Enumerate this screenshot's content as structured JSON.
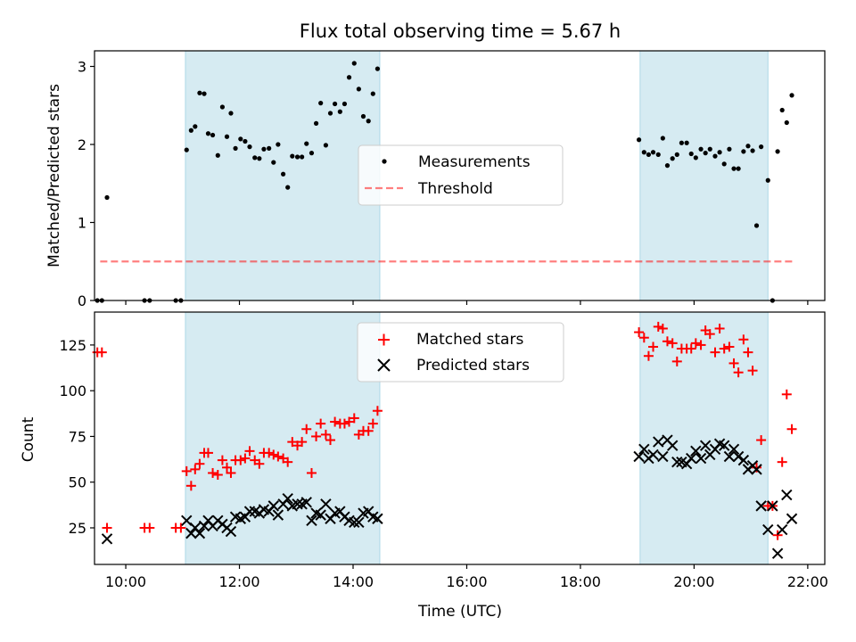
{
  "figure": {
    "title": "Flux total observing time = 5.67 h",
    "xlabel": "Time (UTC)"
  },
  "colors": {
    "shade": "#add8e6",
    "measurement": "#000000",
    "threshold": "#ff0000",
    "matched": "#ff0000",
    "predicted": "#000000"
  },
  "chart_data": [
    {
      "type": "scatter",
      "name": "ratio",
      "ylabel": "Matched/Predicted stars",
      "xlim": [
        9.45,
        22.3
      ],
      "ylim": [
        0,
        3.2
      ],
      "yticks": [
        0,
        1,
        2,
        3
      ],
      "xticks": [
        10,
        12,
        14,
        16,
        18,
        20,
        22
      ],
      "xtick_labels": [
        "10:00",
        "12:00",
        "14:00",
        "16:00",
        "18:00",
        "20:00",
        "22:00"
      ],
      "shaded_intervals": [
        [
          11.05,
          14.47
        ],
        [
          19.05,
          21.3
        ]
      ],
      "legend": {
        "position": "center",
        "entries": [
          "Measurements",
          "Threshold"
        ]
      },
      "threshold": {
        "name": "Threshold",
        "y": 0.5,
        "x": [
          9.55,
          21.75
        ]
      },
      "series": [
        {
          "name": "Measurements",
          "points": [
            [
              9.5,
              0
            ],
            [
              9.58,
              0
            ],
            [
              9.67,
              1.32
            ],
            [
              10.33,
              0
            ],
            [
              10.42,
              0
            ],
            [
              10.88,
              0
            ],
            [
              10.97,
              0
            ],
            [
              11.07,
              1.93
            ],
            [
              11.15,
              2.18
            ],
            [
              11.22,
              2.23
            ],
            [
              11.3,
              2.66
            ],
            [
              11.38,
              2.65
            ],
            [
              11.45,
              2.14
            ],
            [
              11.53,
              2.12
            ],
            [
              11.62,
              1.86
            ],
            [
              11.7,
              2.48
            ],
            [
              11.78,
              2.1
            ],
            [
              11.85,
              2.4
            ],
            [
              11.93,
              1.95
            ],
            [
              12.02,
              2.07
            ],
            [
              12.1,
              2.04
            ],
            [
              12.18,
              1.97
            ],
            [
              12.27,
              1.83
            ],
            [
              12.35,
              1.82
            ],
            [
              12.43,
              1.94
            ],
            [
              12.52,
              1.95
            ],
            [
              12.6,
              1.77
            ],
            [
              12.68,
              2.0
            ],
            [
              12.77,
              1.62
            ],
            [
              12.85,
              1.45
            ],
            [
              12.93,
              1.85
            ],
            [
              13.02,
              1.84
            ],
            [
              13.1,
              1.84
            ],
            [
              13.18,
              2.01
            ],
            [
              13.27,
              1.89
            ],
            [
              13.35,
              2.27
            ],
            [
              13.43,
              2.53
            ],
            [
              13.52,
              1.99
            ],
            [
              13.6,
              2.4
            ],
            [
              13.68,
              2.52
            ],
            [
              13.77,
              2.42
            ],
            [
              13.85,
              2.52
            ],
            [
              13.93,
              2.86
            ],
            [
              14.02,
              3.04
            ],
            [
              14.1,
              2.71
            ],
            [
              14.18,
              2.36
            ],
            [
              14.27,
              2.3
            ],
            [
              14.35,
              2.65
            ],
            [
              14.43,
              2.97
            ],
            [
              19.03,
              2.06
            ],
            [
              19.12,
              1.9
            ],
            [
              19.2,
              1.87
            ],
            [
              19.28,
              1.9
            ],
            [
              19.37,
              1.87
            ],
            [
              19.45,
              2.08
            ],
            [
              19.53,
              1.73
            ],
            [
              19.62,
              1.82
            ],
            [
              19.7,
              1.87
            ],
            [
              19.78,
              2.02
            ],
            [
              19.87,
              2.02
            ],
            [
              19.95,
              1.88
            ],
            [
              20.03,
              1.83
            ],
            [
              20.12,
              1.94
            ],
            [
              20.2,
              1.89
            ],
            [
              20.28,
              1.94
            ],
            [
              20.37,
              1.85
            ],
            [
              20.45,
              1.9
            ],
            [
              20.53,
              1.75
            ],
            [
              20.62,
              1.94
            ],
            [
              20.7,
              1.69
            ],
            [
              20.78,
              1.69
            ],
            [
              20.87,
              1.91
            ],
            [
              20.95,
              1.98
            ],
            [
              21.03,
              1.92
            ],
            [
              21.1,
              0.96
            ],
            [
              21.18,
              1.97
            ],
            [
              21.3,
              1.54
            ],
            [
              21.38,
              0
            ],
            [
              21.47,
              1.91
            ],
            [
              21.55,
              2.44
            ],
            [
              21.63,
              2.28
            ],
            [
              21.72,
              2.63
            ]
          ]
        }
      ]
    },
    {
      "type": "scatter",
      "name": "counts",
      "ylabel": "Count",
      "xlim": [
        9.45,
        22.3
      ],
      "ylim": [
        5,
        143
      ],
      "yticks": [
        25,
        50,
        75,
        100,
        125
      ],
      "xticks": [
        10,
        12,
        14,
        16,
        18,
        20,
        22
      ],
      "xtick_labels": [
        "10:00",
        "12:00",
        "14:00",
        "16:00",
        "18:00",
        "20:00",
        "22:00"
      ],
      "shaded_intervals": [
        [
          11.05,
          14.47
        ],
        [
          19.05,
          21.3
        ]
      ],
      "legend": {
        "position": "upper center",
        "entries": [
          "Matched stars",
          "Predicted stars"
        ]
      },
      "series": [
        {
          "name": "Matched stars",
          "marker": "plus",
          "points": [
            [
              9.5,
              121
            ],
            [
              9.58,
              121
            ],
            [
              9.67,
              25
            ],
            [
              10.33,
              25
            ],
            [
              10.42,
              25
            ],
            [
              10.88,
              25
            ],
            [
              10.97,
              25
            ],
            [
              11.07,
              56
            ],
            [
              11.15,
              48
            ],
            [
              11.22,
              57
            ],
            [
              11.3,
              60
            ],
            [
              11.38,
              66
            ],
            [
              11.45,
              66
            ],
            [
              11.53,
              55
            ],
            [
              11.62,
              54
            ],
            [
              11.7,
              62
            ],
            [
              11.78,
              58
            ],
            [
              11.85,
              55
            ],
            [
              11.93,
              62
            ],
            [
              12.02,
              62
            ],
            [
              12.1,
              63
            ],
            [
              12.18,
              67
            ],
            [
              12.27,
              62
            ],
            [
              12.35,
              60
            ],
            [
              12.43,
              66
            ],
            [
              12.52,
              66
            ],
            [
              12.6,
              65
            ],
            [
              12.68,
              64
            ],
            [
              12.77,
              63
            ],
            [
              12.85,
              61
            ],
            [
              12.93,
              72
            ],
            [
              13.02,
              70
            ],
            [
              13.1,
              72
            ],
            [
              13.18,
              79
            ],
            [
              13.27,
              55
            ],
            [
              13.35,
              75
            ],
            [
              13.43,
              82
            ],
            [
              13.52,
              76
            ],
            [
              13.6,
              73
            ],
            [
              13.68,
              83
            ],
            [
              13.77,
              82
            ],
            [
              13.85,
              82
            ],
            [
              13.93,
              83
            ],
            [
              14.02,
              85
            ],
            [
              14.1,
              76
            ],
            [
              14.18,
              78
            ],
            [
              14.27,
              78
            ],
            [
              14.35,
              82
            ],
            [
              14.43,
              89
            ],
            [
              19.03,
              132
            ],
            [
              19.12,
              129
            ],
            [
              19.2,
              119
            ],
            [
              19.28,
              124
            ],
            [
              19.37,
              135
            ],
            [
              19.45,
              134
            ],
            [
              19.53,
              127
            ],
            [
              19.62,
              126
            ],
            [
              19.7,
              116
            ],
            [
              19.78,
              123
            ],
            [
              19.87,
              123
            ],
            [
              19.95,
              123
            ],
            [
              20.03,
              126
            ],
            [
              20.12,
              125
            ],
            [
              20.2,
              133
            ],
            [
              20.28,
              131
            ],
            [
              20.37,
              121
            ],
            [
              20.45,
              134
            ],
            [
              20.53,
              123
            ],
            [
              20.62,
              124
            ],
            [
              20.7,
              115
            ],
            [
              20.78,
              110
            ],
            [
              20.87,
              128
            ],
            [
              20.95,
              121
            ],
            [
              21.03,
              111
            ],
            [
              21.1,
              58
            ],
            [
              21.18,
              73
            ],
            [
              21.3,
              37
            ],
            [
              21.38,
              37
            ],
            [
              21.47,
              21
            ],
            [
              21.55,
              61
            ],
            [
              21.63,
              98
            ],
            [
              21.72,
              79
            ]
          ]
        },
        {
          "name": "Predicted stars",
          "marker": "x",
          "points": [
            [
              9.67,
              19
            ],
            [
              11.07,
              29
            ],
            [
              11.15,
              22
            ],
            [
              11.22,
              25
            ],
            [
              11.3,
              22
            ],
            [
              11.38,
              26
            ],
            [
              11.45,
              29
            ],
            [
              11.53,
              26
            ],
            [
              11.62,
              29
            ],
            [
              11.7,
              27
            ],
            [
              11.78,
              25
            ],
            [
              11.85,
              23
            ],
            [
              11.93,
              31
            ],
            [
              12.02,
              30
            ],
            [
              12.1,
              31
            ],
            [
              12.18,
              34
            ],
            [
              12.27,
              34
            ],
            [
              12.35,
              33
            ],
            [
              12.43,
              35
            ],
            [
              12.52,
              34
            ],
            [
              12.6,
              37
            ],
            [
              12.68,
              32
            ],
            [
              12.77,
              38
            ],
            [
              12.85,
              41
            ],
            [
              12.93,
              37
            ],
            [
              13.02,
              38
            ],
            [
              13.1,
              38
            ],
            [
              13.18,
              39
            ],
            [
              13.27,
              29
            ],
            [
              13.35,
              33
            ],
            [
              13.43,
              32
            ],
            [
              13.52,
              38
            ],
            [
              13.6,
              30
            ],
            [
              13.68,
              33
            ],
            [
              13.77,
              34
            ],
            [
              13.85,
              31
            ],
            [
              13.93,
              29
            ],
            [
              14.02,
              28
            ],
            [
              14.1,
              28
            ],
            [
              14.18,
              33
            ],
            [
              14.27,
              34
            ],
            [
              14.35,
              31
            ],
            [
              14.43,
              30
            ],
            [
              19.03,
              64
            ],
            [
              19.12,
              68
            ],
            [
              19.2,
              63
            ],
            [
              19.28,
              65
            ],
            [
              19.37,
              72
            ],
            [
              19.45,
              64
            ],
            [
              19.53,
              73
            ],
            [
              19.62,
              70
            ],
            [
              19.7,
              61
            ],
            [
              19.78,
              61
            ],
            [
              19.87,
              60
            ],
            [
              19.95,
              63
            ],
            [
              20.03,
              67
            ],
            [
              20.12,
              63
            ],
            [
              20.2,
              70
            ],
            [
              20.28,
              65
            ],
            [
              20.37,
              68
            ],
            [
              20.45,
              71
            ],
            [
              20.53,
              70
            ],
            [
              20.62,
              64
            ],
            [
              20.7,
              68
            ],
            [
              20.78,
              64
            ],
            [
              20.87,
              62
            ],
            [
              20.95,
              57
            ],
            [
              21.03,
              59
            ],
            [
              21.1,
              57
            ],
            [
              21.18,
              37
            ],
            [
              21.3,
              24
            ],
            [
              21.38,
              37
            ],
            [
              21.47,
              11
            ],
            [
              21.55,
              24
            ],
            [
              21.63,
              43
            ],
            [
              21.72,
              30
            ]
          ]
        }
      ]
    }
  ]
}
